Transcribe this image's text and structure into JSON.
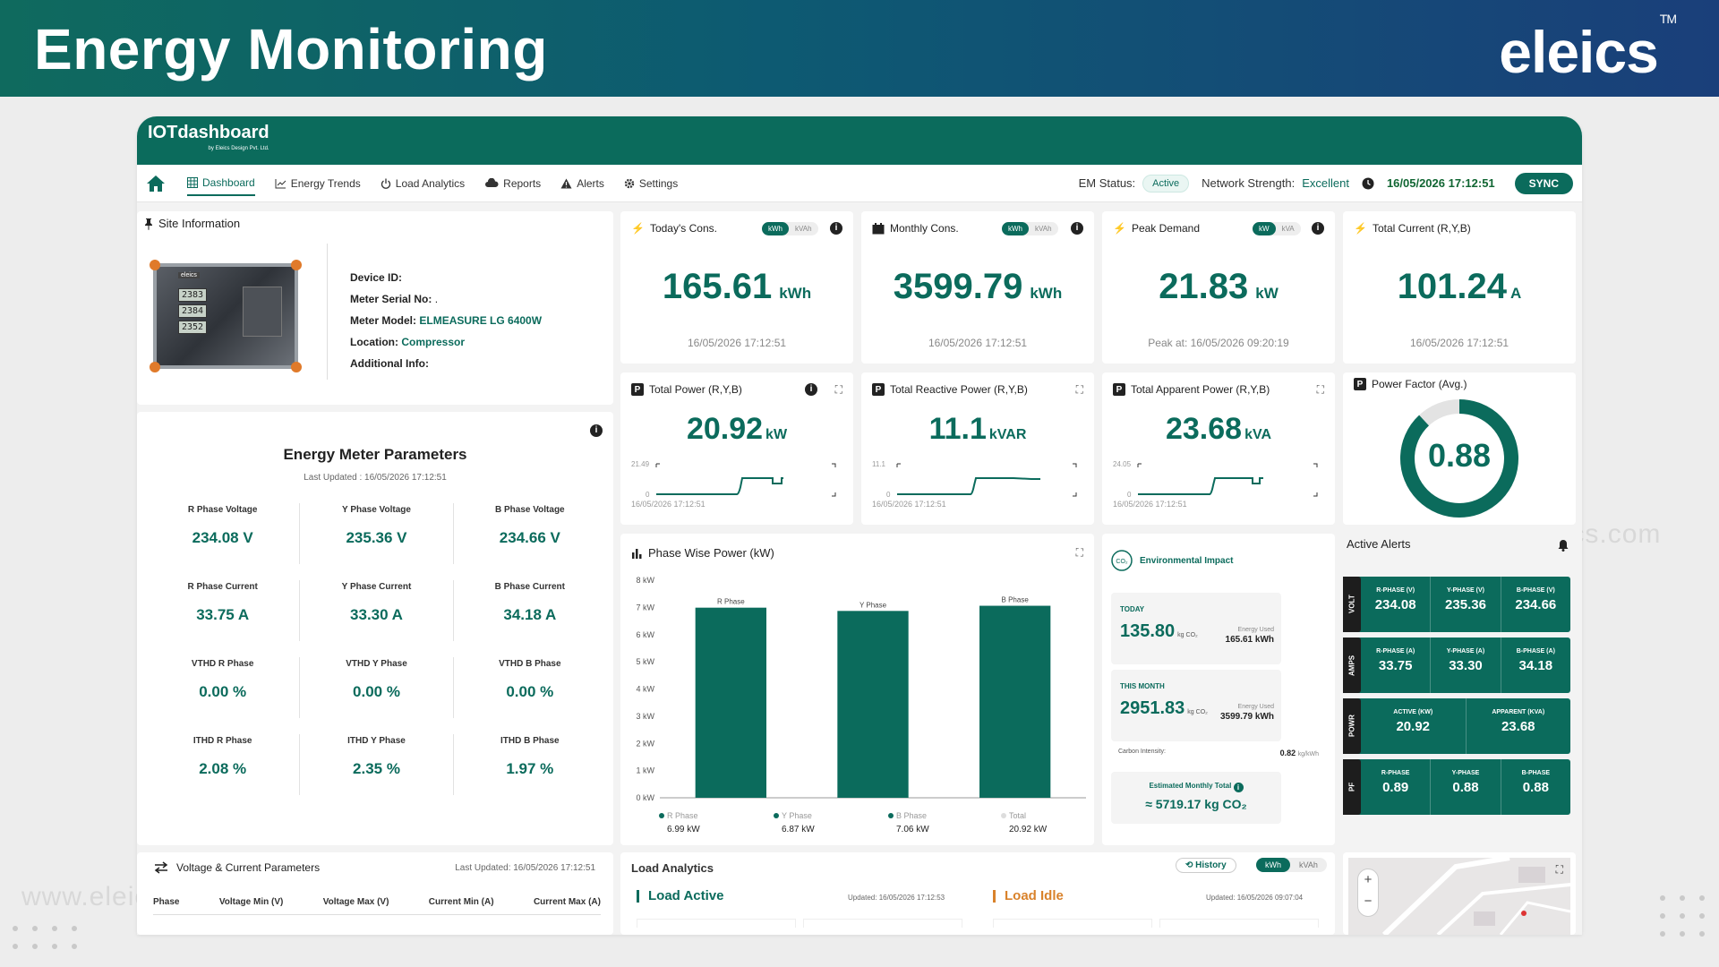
{
  "hero": {
    "title": "Energy Monitoring",
    "brand": "eleics",
    "trademark": "TM"
  },
  "watermarks": [
    "www.eleics.com",
    "www.eleics.com"
  ],
  "app": {
    "logo": "IOTdashboard",
    "logo_sub": "by Eleics Design Pvt. Ltd.",
    "nav": [
      {
        "label": "Dashboard",
        "icon": "grid-icon"
      },
      {
        "label": "Energy Trends",
        "icon": "trend-icon"
      },
      {
        "label": "Load Analytics",
        "icon": "power-icon"
      },
      {
        "label": "Reports",
        "icon": "cloud-icon"
      },
      {
        "label": "Alerts",
        "icon": "warning-icon"
      },
      {
        "label": "Settings",
        "icon": "gear-icon"
      }
    ],
    "em_status_label": "EM Status:",
    "em_status_value": "Active",
    "network_label": "Network Strength:",
    "network_value": "Excellent",
    "datetime": "16/05/2026 17:12:51",
    "sync_label": "SYNC",
    "accent": "#0b6b5c"
  },
  "site": {
    "title": "Site Information",
    "meter_readings": [
      "2383",
      "2384",
      "2352"
    ],
    "meter_brand": "eleics",
    "rows": [
      {
        "label": "Device ID:",
        "value": ""
      },
      {
        "label": "Meter Serial No:",
        "value": "."
      },
      {
        "label": "Meter Model:",
        "value": "ELMEASURE LG 6400W"
      },
      {
        "label": "Location:",
        "value": "Compressor"
      },
      {
        "label": "Additional Info:",
        "value": ""
      }
    ]
  },
  "stats": [
    {
      "title": "Today's Cons.",
      "toggle": [
        "kWh",
        "kVAh"
      ],
      "value": "165.61",
      "unit": "kWh",
      "footer": "16/05/2026 17:12:51"
    },
    {
      "title": "Monthly Cons.",
      "toggle": [
        "kWh",
        "kVAh"
      ],
      "value": "3599.79",
      "unit": "kWh",
      "footer": "16/05/2026 17:12:51"
    },
    {
      "title": "Peak Demand",
      "toggle": [
        "kW",
        "kVA"
      ],
      "value": "21.83",
      "unit": "kW",
      "footer": "Peak at: 16/05/2026 09:20:19"
    },
    {
      "title": "Total Current (R,Y,B)",
      "value": "101.24",
      "unit": "A",
      "footer": "16/05/2026 17:12:51"
    }
  ],
  "power_cards": [
    {
      "title": "Total Power (R,Y,B)",
      "value": "20.92",
      "unit": "kW",
      "ymax": "21.49",
      "ymin": "0",
      "time": "16/05/2026 17:12:51"
    },
    {
      "title": "Total Reactive Power (R,Y,B)",
      "value": "11.1",
      "unit": "kVAR",
      "ymax": "11.1",
      "ymin": "0",
      "time": "16/05/2026 17:12:51"
    },
    {
      "title": "Total Apparent Power (R,Y,B)",
      "value": "23.68",
      "unit": "kVA",
      "ymax": "24.05",
      "ymin": "0",
      "time": "16/05/2026 17:12:51"
    }
  ],
  "power_factor": {
    "title": "Power Factor (Avg.)",
    "value": "0.88",
    "fraction": 0.88
  },
  "energy_params": {
    "title": "Energy Meter Parameters",
    "updated": "Last Updated : 16/05/2026 17:12:51",
    "items": [
      {
        "label": "R Phase Voltage",
        "value": "234.08 V"
      },
      {
        "label": "Y Phase Voltage",
        "value": "235.36 V"
      },
      {
        "label": "B Phase Voltage",
        "value": "234.66 V"
      },
      {
        "label": "R Phase Current",
        "value": "33.75 A"
      },
      {
        "label": "Y Phase Current",
        "value": "33.30 A"
      },
      {
        "label": "B Phase Current",
        "value": "34.18 A"
      },
      {
        "label": "VTHD R Phase",
        "value": "0.00 %"
      },
      {
        "label": "VTHD Y Phase",
        "value": "0.00 %"
      },
      {
        "label": "VTHD B Phase",
        "value": "0.00 %"
      },
      {
        "label": "ITHD R Phase",
        "value": "2.08 %"
      },
      {
        "label": "ITHD Y Phase",
        "value": "2.35 %"
      },
      {
        "label": "ITHD B Phase",
        "value": "1.97 %"
      }
    ]
  },
  "chart_data": {
    "type": "bar",
    "title": "Phase Wise Power (kW)",
    "categories": [
      "R Phase",
      "Y Phase",
      "B Phase"
    ],
    "values": [
      6.99,
      6.87,
      7.06
    ],
    "ylim": [
      0,
      8
    ],
    "yticks": [
      "0 kW",
      "1 kW",
      "2 kW",
      "3 kW",
      "4 kW",
      "5 kW",
      "6 kW",
      "7 kW",
      "8 kW"
    ],
    "legend": [
      {
        "name": "R Phase",
        "value": "6.99 kW"
      },
      {
        "name": "Y Phase",
        "value": "6.87 kW"
      },
      {
        "name": "B Phase",
        "value": "7.06 kW"
      },
      {
        "name": "Total",
        "value": "20.92 kW"
      }
    ],
    "color": "#0b6b5c"
  },
  "environment": {
    "title": "Environmental Impact",
    "today_label": "TODAY",
    "today_value": "135.80",
    "today_unit": "kg CO₂",
    "today_energy_label": "Energy Used",
    "today_energy": "165.61 kWh",
    "month_label": "THIS MONTH",
    "month_value": "2951.83",
    "month_unit": "kg CO₂",
    "month_energy_label": "Energy Used",
    "month_energy": "3599.79 kWh",
    "intensity_label": "Carbon Intensity:",
    "intensity_value": "0.82",
    "intensity_unit": "kg/kWh",
    "estimate_label": "Estimated Monthly Total",
    "estimate_value": "≈ 5719.17 kg CO₂"
  },
  "alerts": {
    "title": "Active Alerts",
    "rows": [
      {
        "tag": "VOLT",
        "cells": [
          {
            "label": "R-PHASE (V)",
            "value": "234.08"
          },
          {
            "label": "Y-PHASE (V)",
            "value": "235.36"
          },
          {
            "label": "B-PHASE (V)",
            "value": "234.66"
          }
        ]
      },
      {
        "tag": "AMPS",
        "cells": [
          {
            "label": "R-PHASE (A)",
            "value": "33.75"
          },
          {
            "label": "Y-PHASE (A)",
            "value": "33.30"
          },
          {
            "label": "B-PHASE (A)",
            "value": "34.18"
          }
        ]
      },
      {
        "tag": "POWR",
        "cells": [
          {
            "label": "ACTIVE (KW)",
            "value": "20.92"
          },
          {
            "label": "APPARENT (KVA)",
            "value": "23.68"
          }
        ]
      },
      {
        "tag": "PF",
        "cells": [
          {
            "label": "R-PHASE",
            "value": "0.89"
          },
          {
            "label": "Y-PHASE",
            "value": "0.88"
          },
          {
            "label": "B-PHASE",
            "value": "0.88"
          }
        ]
      }
    ]
  },
  "vc_params": {
    "title": "Voltage & Current Parameters",
    "updated": "Last Updated: 16/05/2026 17:12:51",
    "columns": [
      "Phase",
      "Voltage Min (V)",
      "Voltage Max (V)",
      "Current Min (A)",
      "Current Max (A)"
    ]
  },
  "load_analytics": {
    "title": "Load Analytics",
    "history": "History",
    "toggle": [
      "kWh",
      "kVAh"
    ],
    "active_label": "Load Active",
    "active_updated": "Updated: 16/05/2026 17:12:53",
    "idle_label": "Load Idle",
    "idle_updated": "Updated: 16/05/2026 09:07:04"
  },
  "map": {
    "zoom_in": "+",
    "zoom_out": "−"
  }
}
